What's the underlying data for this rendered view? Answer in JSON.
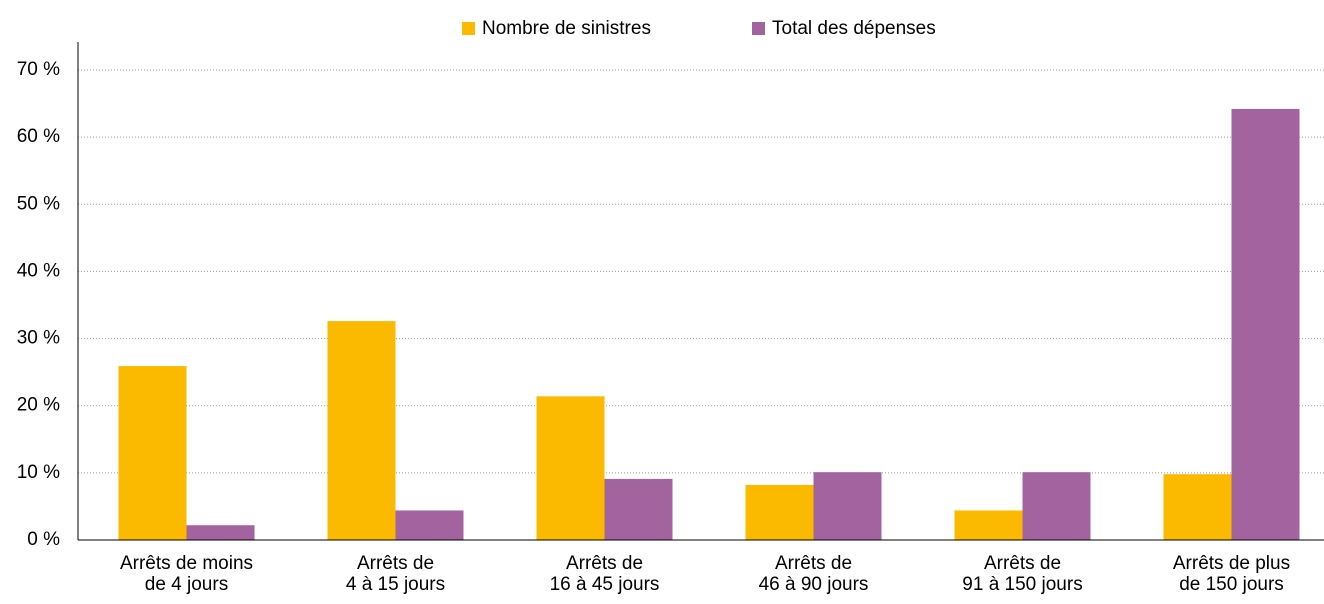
{
  "chart_data": {
    "type": "bar",
    "categories": [
      "Arrêts de moins\nde 4 jours",
      "Arrêts de\n4 à 15 jours",
      "Arrêts de\n16 à 45 jours",
      "Arrêts de\n46 à 90 jours",
      "Arrêts de\n91 à 150 jours",
      "Arrêts de plus\nde 150 jours"
    ],
    "series": [
      {
        "name": "Nombre de sinistres",
        "color": "#fbb900",
        "values": [
          25.9,
          32.6,
          21.4,
          8.2,
          4.4,
          9.8
        ]
      },
      {
        "name": "Total des dépenses",
        "color": "#a3639f",
        "values": [
          2.2,
          4.4,
          9.1,
          10.1,
          10.1,
          64.2
        ]
      }
    ],
    "ylim": [
      0,
      70
    ],
    "yticks": [
      {
        "value": 0,
        "label": "0 %"
      },
      {
        "value": 10,
        "label": "10 %"
      },
      {
        "value": 20,
        "label": "20 %"
      },
      {
        "value": 30,
        "label": "30 %"
      },
      {
        "value": 40,
        "label": "40 %"
      },
      {
        "value": 50,
        "label": "50 %"
      },
      {
        "value": 60,
        "label": "60 %"
      },
      {
        "value": 70,
        "label": "70 %"
      }
    ],
    "grid": true,
    "legend": "top"
  }
}
